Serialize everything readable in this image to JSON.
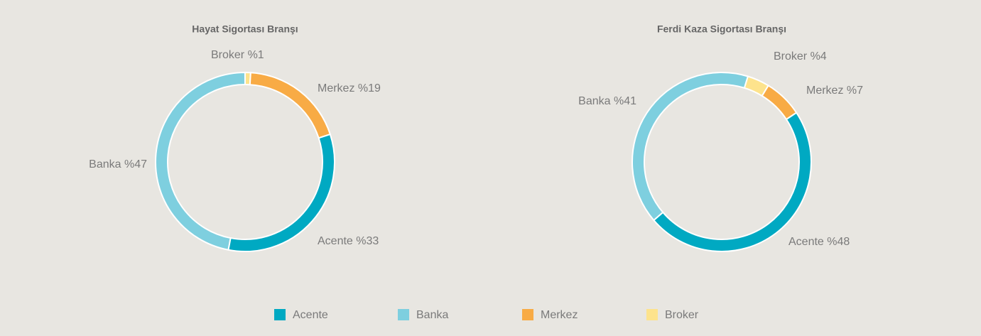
{
  "chart_data": [
    {
      "type": "donut",
      "title": "Hayat Sigortası Branşı",
      "categories": [
        "Broker",
        "Merkez",
        "Acente",
        "Banka"
      ],
      "values": [
        1,
        19,
        33,
        47
      ],
      "value_labels": [
        "Broker %1",
        "Merkez %19",
        "Acente %33",
        "Banka %47"
      ],
      "colors": [
        "#fde38c",
        "#f8ab45",
        "#00a9c2",
        "#7ecfdf"
      ]
    },
    {
      "type": "donut",
      "title": "Ferdi Kaza Sigortası Branşı",
      "categories": [
        "Broker",
        "Merkez",
        "Acente",
        "Banka"
      ],
      "values": [
        4,
        7,
        48,
        41
      ],
      "value_labels": [
        "Broker %4",
        "Merkez %7",
        "Acente %48",
        "Banka %41"
      ],
      "colors": [
        "#fde38c",
        "#f8ab45",
        "#00a9c2",
        "#7ecfdf"
      ]
    }
  ]
}
